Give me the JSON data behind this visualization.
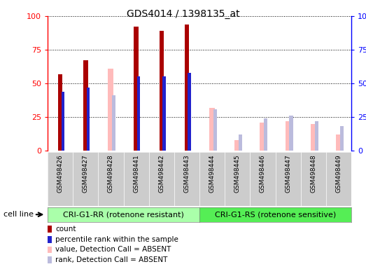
{
  "title": "GDS4014 / 1398135_at",
  "samples": [
    "GSM498426",
    "GSM498427",
    "GSM498428",
    "GSM498441",
    "GSM498442",
    "GSM498443",
    "GSM498444",
    "GSM498445",
    "GSM498446",
    "GSM498447",
    "GSM498448",
    "GSM498449"
  ],
  "group1_label": "CRI-G1-RR (rotenone resistant)",
  "group2_label": "CRI-G1-RS (rotenone sensitive)",
  "group1_count": 6,
  "group2_count": 6,
  "count_values": [
    57,
    67,
    0,
    92,
    89,
    94,
    0,
    0,
    0,
    0,
    0,
    0
  ],
  "rank_values": [
    44,
    47,
    0,
    55,
    55,
    58,
    0,
    0,
    0,
    0,
    0,
    0
  ],
  "absent_value": [
    0,
    0,
    61,
    0,
    0,
    0,
    32,
    8,
    21,
    22,
    20,
    12
  ],
  "absent_rank": [
    0,
    0,
    41,
    0,
    0,
    0,
    31,
    12,
    24,
    26,
    22,
    18
  ],
  "count_color": "#aa0000",
  "rank_color": "#2222cc",
  "absent_val_color": "#ffbbbb",
  "absent_rank_color": "#bbbbdd",
  "group1_bg": "#aaffaa",
  "group2_bg": "#55ee55",
  "tick_bg": "#cccccc",
  "plot_bg": "#ffffff",
  "ylim": [
    0,
    100
  ],
  "yticks": [
    0,
    25,
    50,
    75,
    100
  ],
  "figsize": [
    5.23,
    3.84
  ],
  "dpi": 100
}
